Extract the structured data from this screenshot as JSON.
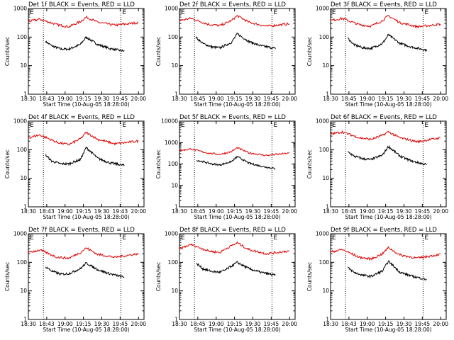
{
  "colors": {
    "events": "#000000",
    "lld": "#e00000",
    "axes": "#000000",
    "background": "#ffffff"
  },
  "chart_data": [
    {
      "type": "line",
      "title": "Det 1f BLACK = Events, RED = LLD",
      "xlabel": "Start Time (10-Aug-05 18:28:00)",
      "ylabel": "Counts/sec",
      "xlim": [
        "18:30",
        "20:10"
      ],
      "ylim": [
        1,
        1000
      ],
      "y_scale": "log",
      "x_tick_labels": [
        "18:30",
        "18:43",
        "19:00",
        "19:15",
        "19:30",
        "19:45",
        "20:00"
      ],
      "y_tick_labels": [
        "1000",
        "100",
        "10",
        "1"
      ],
      "markers": [
        {
          "label": "E",
          "x": "18:43"
        },
        {
          "label": "E",
          "x": "19:50"
        }
      ],
      "series": [
        {
          "name": "Events",
          "color": "#000000",
          "x": [
            "18:45",
            "18:50",
            "18:58",
            "19:05",
            "19:15",
            "19:20",
            "19:30",
            "19:40",
            "19:53"
          ],
          "values": [
            70,
            50,
            38,
            38,
            55,
            100,
            55,
            40,
            32
          ]
        },
        {
          "name": "LLD",
          "color": "#e00000",
          "x": [
            "18:30",
            "18:40",
            "18:55",
            "19:05",
            "19:15",
            "19:20",
            "19:30",
            "19:45",
            "20:05"
          ],
          "values": [
            350,
            420,
            270,
            230,
            350,
            500,
            330,
            260,
            320
          ]
        }
      ]
    },
    {
      "type": "line",
      "title": "Det 2f BLACK = Events, RED = LLD",
      "xlabel": "Start Time (10-Aug-05 18:28:00)",
      "ylabel": "Counts/sec",
      "xlim": [
        "18:30",
        "20:10"
      ],
      "ylim": [
        1,
        1000
      ],
      "y_scale": "log",
      "x_tick_labels": [
        "18:30",
        "18:45",
        "19:00",
        "19:15",
        "19:30",
        "19:45",
        "20:00"
      ],
      "y_tick_labels": [
        "1000",
        "100",
        "10",
        "1"
      ],
      "markers": [
        {
          "label": "E",
          "x": "18:43"
        },
        {
          "label": "E",
          "x": "19:50"
        }
      ],
      "series": [
        {
          "name": "Events",
          "color": "#000000",
          "x": [
            "18:44",
            "18:50",
            "18:58",
            "19:05",
            "19:15",
            "19:20",
            "19:30",
            "19:40",
            "19:53"
          ],
          "values": [
            100,
            60,
            45,
            42,
            65,
            130,
            70,
            50,
            40
          ]
        },
        {
          "name": "LLD",
          "color": "#e00000",
          "x": [
            "18:30",
            "18:40",
            "18:55",
            "19:05",
            "19:15",
            "19:20",
            "19:30",
            "19:45",
            "20:05"
          ],
          "values": [
            380,
            450,
            280,
            250,
            380,
            560,
            330,
            240,
            290
          ]
        }
      ]
    },
    {
      "type": "line",
      "title": "Det 3f BLACK = Events, RED = LLD",
      "xlabel": "Start Time (10-Aug-05 18:28:00)",
      "ylabel": "Counts/sec",
      "xlim": [
        "18:30",
        "20:10"
      ],
      "ylim": [
        1,
        1000
      ],
      "y_scale": "log",
      "x_tick_labels": [
        "18:30",
        "18:45",
        "19:00",
        "19:15",
        "19:30",
        "19:45",
        "20:00"
      ],
      "y_tick_labels": [
        "1000",
        "100",
        "10",
        "1"
      ],
      "markers": [
        {
          "label": "E",
          "x": "18:43"
        },
        {
          "label": "E",
          "x": "19:50"
        }
      ],
      "series": [
        {
          "name": "Events",
          "color": "#000000",
          "x": [
            "18:45",
            "18:50",
            "18:58",
            "19:05",
            "19:15",
            "19:20",
            "19:30",
            "19:40",
            "19:53"
          ],
          "values": [
            90,
            55,
            42,
            40,
            60,
            120,
            60,
            45,
            35
          ]
        },
        {
          "name": "LLD",
          "color": "#e00000",
          "x": [
            "18:30",
            "18:40",
            "18:55",
            "19:05",
            "19:15",
            "19:20",
            "19:30",
            "19:45",
            "20:05"
          ],
          "values": [
            380,
            450,
            270,
            240,
            380,
            560,
            320,
            230,
            280
          ]
        }
      ]
    },
    {
      "type": "line",
      "title": "Det 4f BLACK = Events, RED = LLD",
      "xlabel": "Start Time (10-Aug-05 18:28:00)",
      "ylabel": "Counts/sec",
      "xlim": [
        "18:30",
        "20:10"
      ],
      "ylim": [
        1,
        1000
      ],
      "y_scale": "log",
      "x_tick_labels": [
        "18:30",
        "18:43",
        "19:00",
        "19:15",
        "19:30",
        "19:43",
        "20:00"
      ],
      "y_tick_labels": [
        "1000",
        "100",
        "10",
        "1"
      ],
      "markers": [
        {
          "label": "E",
          "x": "18:43"
        },
        {
          "label": "E",
          "x": "19:50"
        }
      ],
      "series": [
        {
          "name": "Events",
          "color": "#000000",
          "x": [
            "18:45",
            "18:50",
            "18:58",
            "19:05",
            "19:15",
            "19:20",
            "19:30",
            "19:40",
            "19:53"
          ],
          "values": [
            65,
            40,
            32,
            32,
            45,
            120,
            50,
            35,
            28
          ]
        },
        {
          "name": "LLD",
          "color": "#e00000",
          "x": [
            "18:30",
            "18:40",
            "18:55",
            "19:05",
            "19:15",
            "19:20",
            "19:30",
            "19:45",
            "20:05"
          ],
          "values": [
            260,
            330,
            180,
            150,
            240,
            400,
            230,
            160,
            200
          ]
        }
      ]
    },
    {
      "type": "line",
      "title": "Det 5f BLACK = Events, RED = LLD",
      "xlabel": "Start Time (10-Aug-05 18:28:00)",
      "ylabel": "Counts/sec",
      "xlim": [
        "18:30",
        "20:10"
      ],
      "ylim": [
        1,
        10000
      ],
      "y_scale": "log",
      "x_tick_labels": [
        "18:30",
        "18:45",
        "19:00",
        "19:15",
        "19:30",
        "19:45",
        "20:00"
      ],
      "y_tick_labels": [
        "10000",
        "1000",
        "100",
        "10",
        "1"
      ],
      "markers": [
        {
          "label": "E",
          "x": "18:43"
        },
        {
          "label": "E",
          "x": "19:50"
        }
      ],
      "series": [
        {
          "name": "Events",
          "color": "#000000",
          "x": [
            "18:45",
            "18:50",
            "18:58",
            "19:05",
            "19:15",
            "19:20",
            "19:30",
            "19:40",
            "19:53"
          ],
          "values": [
            150,
            130,
            100,
            90,
            130,
            220,
            110,
            80,
            60
          ]
        },
        {
          "name": "LLD",
          "color": "#e00000",
          "x": [
            "18:30",
            "18:40",
            "18:55",
            "19:05",
            "19:15",
            "19:20",
            "19:30",
            "19:45",
            "20:05"
          ],
          "values": [
            420,
            500,
            320,
            280,
            380,
            570,
            330,
            250,
            320
          ]
        }
      ]
    },
    {
      "type": "line",
      "title": "Det 6f BLACK = Events, RED = LLD",
      "xlabel": "Start Time (10-Aug-05 18:28:00)",
      "ylabel": "Counts/sec",
      "xlim": [
        "18:30",
        "20:10"
      ],
      "ylim": [
        1,
        1000
      ],
      "y_scale": "log",
      "x_tick_labels": [
        "18:30",
        "18:45",
        "19:00",
        "19:15",
        "19:30",
        "19:45",
        "20:00"
      ],
      "y_tick_labels": [
        "1000",
        "100",
        "10",
        "1"
      ],
      "markers": [
        {
          "label": "E",
          "x": "18:43"
        },
        {
          "label": "E",
          "x": "19:50"
        }
      ],
      "series": [
        {
          "name": "Events",
          "color": "#000000",
          "x": [
            "18:45",
            "18:50",
            "18:58",
            "19:05",
            "19:15",
            "19:20",
            "19:30",
            "19:40",
            "19:53"
          ],
          "values": [
            85,
            60,
            48,
            45,
            65,
            130,
            60,
            40,
            30
          ]
        },
        {
          "name": "LLD",
          "color": "#e00000",
          "x": [
            "18:30",
            "18:40",
            "18:55",
            "19:05",
            "19:15",
            "19:20",
            "19:30",
            "19:45",
            "20:05"
          ],
          "values": [
            350,
            420,
            260,
            230,
            320,
            420,
            260,
            190,
            260
          ]
        }
      ]
    },
    {
      "type": "line",
      "title": "Det 7f BLACK = Events, RED = LLD",
      "xlabel": "Start Time (10-Aug-05 18:28:00)",
      "ylabel": "Counts/sec",
      "xlim": [
        "18:30",
        "20:10"
      ],
      "ylim": [
        1,
        1000
      ],
      "y_scale": "log",
      "x_tick_labels": [
        "18:30",
        "18:43",
        "19:00",
        "19:15",
        "19:30",
        "19:45",
        "20:00"
      ],
      "y_tick_labels": [
        "1000",
        "100",
        "10",
        "1"
      ],
      "markers": [
        {
          "label": "E",
          "x": "18:43"
        },
        {
          "label": "E",
          "x": "19:50"
        }
      ],
      "series": [
        {
          "name": "Events",
          "color": "#000000",
          "x": [
            "18:45",
            "18:50",
            "18:58",
            "19:05",
            "19:15",
            "19:20",
            "19:30",
            "19:40",
            "19:53"
          ],
          "values": [
            70,
            50,
            38,
            40,
            60,
            95,
            55,
            40,
            30
          ]
        },
        {
          "name": "LLD",
          "color": "#e00000",
          "x": [
            "18:30",
            "18:40",
            "18:55",
            "19:05",
            "19:15",
            "19:20",
            "19:30",
            "19:45",
            "20:05"
          ],
          "values": [
            220,
            270,
            150,
            140,
            220,
            320,
            190,
            150,
            200
          ]
        }
      ]
    },
    {
      "type": "line",
      "title": "Det 8f BLACK = Events, RED = LLD",
      "xlabel": "Start Time (10-Aug-05 18:28:00)",
      "ylabel": "Counts/sec",
      "xlim": [
        "18:30",
        "20:10"
      ],
      "ylim": [
        1,
        1000
      ],
      "y_scale": "log",
      "x_tick_labels": [
        "18:30",
        "18:45",
        "19:00",
        "19:15",
        "19:30",
        "19:45",
        "20:00"
      ],
      "y_tick_labels": [
        "1000",
        "100",
        "10",
        "1"
      ],
      "markers": [
        {
          "label": "E",
          "x": "18:43"
        },
        {
          "label": "E",
          "x": "19:50"
        }
      ],
      "series": [
        {
          "name": "Events",
          "color": "#000000",
          "x": [
            "18:45",
            "18:50",
            "18:58",
            "19:05",
            "19:10",
            "19:20",
            "19:30",
            "19:40",
            "19:53"
          ],
          "values": [
            90,
            60,
            48,
            45,
            55,
            100,
            60,
            45,
            35
          ]
        },
        {
          "name": "LLD",
          "color": "#e00000",
          "x": [
            "18:30",
            "18:40",
            "18:55",
            "19:05",
            "19:10",
            "19:20",
            "19:30",
            "19:45",
            "20:05"
          ],
          "values": [
            300,
            420,
            250,
            220,
            300,
            480,
            280,
            200,
            250
          ]
        }
      ]
    },
    {
      "type": "line",
      "title": "Det 9f BLACK = Events, RED = LLD",
      "xlabel": "Start Time (10-Aug-05 18:28:00)",
      "ylabel": "Counts/sec",
      "xlim": [
        "18:30",
        "20:10"
      ],
      "ylim": [
        1,
        1000
      ],
      "y_scale": "log",
      "x_tick_labels": [
        "18:30",
        "18:43",
        "19:00",
        "19:15",
        "19:30",
        "19:45",
        "20:00"
      ],
      "y_tick_labels": [
        "1000",
        "100",
        "10",
        "1"
      ],
      "markers": [
        {
          "label": "E",
          "x": "18:43"
        },
        {
          "label": "E",
          "x": "19:50"
        }
      ],
      "series": [
        {
          "name": "Events",
          "color": "#000000",
          "x": [
            "18:45",
            "18:50",
            "18:58",
            "19:05",
            "19:15",
            "19:20",
            "19:30",
            "19:40",
            "19:53"
          ],
          "values": [
            65,
            45,
            35,
            32,
            50,
            110,
            45,
            33,
            25
          ]
        },
        {
          "name": "LLD",
          "color": "#e00000",
          "x": [
            "18:30",
            "18:40",
            "18:55",
            "19:05",
            "19:15",
            "19:20",
            "19:30",
            "19:45",
            "20:05"
          ],
          "values": [
            230,
            280,
            150,
            130,
            200,
            330,
            180,
            140,
            190
          ]
        }
      ]
    }
  ]
}
